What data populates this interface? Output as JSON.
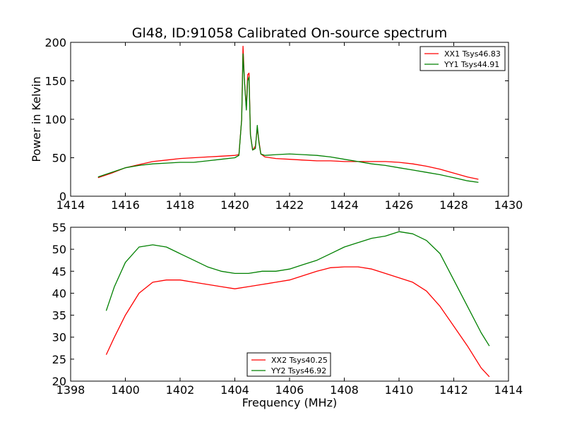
{
  "title": "Gl48, ID:91058 Calibrated On-source spectrum",
  "colors": {
    "red": "#ff0000",
    "green": "#008000"
  },
  "chart_data": [
    {
      "type": "line",
      "ylabel": "Power in Kelvin",
      "xlabel": "",
      "xlim": [
        1414,
        1430
      ],
      "ylim": [
        0,
        200
      ],
      "xticks": [
        1414,
        1416,
        1418,
        1420,
        1422,
        1424,
        1426,
        1428,
        1430
      ],
      "yticks": [
        0,
        50,
        100,
        150,
        200
      ],
      "legend_placement": "top-right",
      "series": [
        {
          "name": "XX1 Tsys46.83",
          "color": "#ff0000",
          "x": [
            1415.0,
            1415.5,
            1416.0,
            1416.5,
            1417.0,
            1417.5,
            1418.0,
            1418.5,
            1419.0,
            1419.5,
            1420.0,
            1420.15,
            1420.25,
            1420.3,
            1420.35,
            1420.42,
            1420.47,
            1420.52,
            1420.57,
            1420.65,
            1420.75,
            1420.82,
            1420.88,
            1420.95,
            1421.1,
            1421.5,
            1422.0,
            1422.5,
            1423.0,
            1423.5,
            1424.0,
            1424.5,
            1425.0,
            1425.5,
            1426.0,
            1426.5,
            1427.0,
            1427.5,
            1428.0,
            1428.5,
            1428.9
          ],
          "y": [
            24,
            30,
            37,
            41,
            45,
            47,
            49,
            50,
            51,
            52,
            53,
            54,
            100,
            195,
            150,
            115,
            158,
            160,
            80,
            60,
            65,
            88,
            72,
            55,
            51,
            49,
            48,
            47,
            46,
            46,
            45,
            45,
            45,
            45,
            44,
            42,
            39,
            35,
            30,
            25,
            22
          ]
        },
        {
          "name": "YY1 Tsys44.91",
          "color": "#008000",
          "x": [
            1415.0,
            1415.5,
            1416.0,
            1416.5,
            1417.0,
            1417.5,
            1418.0,
            1418.5,
            1419.0,
            1419.5,
            1420.0,
            1420.15,
            1420.25,
            1420.3,
            1420.35,
            1420.42,
            1420.47,
            1420.52,
            1420.57,
            1420.65,
            1420.75,
            1420.82,
            1420.88,
            1420.95,
            1421.1,
            1421.5,
            1422.0,
            1422.5,
            1423.0,
            1423.5,
            1424.0,
            1424.5,
            1425.0,
            1425.5,
            1426.0,
            1426.5,
            1427.0,
            1427.5,
            1428.0,
            1428.5,
            1428.9
          ],
          "y": [
            25,
            31,
            37,
            40,
            42,
            43,
            44,
            44,
            46,
            48,
            50,
            53,
            100,
            185,
            150,
            112,
            150,
            155,
            80,
            60,
            62,
            92,
            70,
            55,
            53,
            54,
            55,
            54,
            53,
            51,
            48,
            45,
            42,
            40,
            37,
            34,
            31,
            28,
            24,
            20,
            18
          ]
        }
      ]
    },
    {
      "type": "line",
      "ylabel": "",
      "xlabel": "Frequency (MHz)",
      "xlim": [
        1398,
        1414
      ],
      "ylim": [
        20,
        55
      ],
      "xticks": [
        1398,
        1400,
        1402,
        1404,
        1406,
        1408,
        1410,
        1412,
        1414
      ],
      "yticks": [
        20,
        25,
        30,
        35,
        40,
        45,
        50,
        55
      ],
      "legend_placement": "bottom-center",
      "series": [
        {
          "name": "XX2 Tsys40.25",
          "color": "#ff0000",
          "x": [
            1399.3,
            1399.6,
            1400.0,
            1400.5,
            1401.0,
            1401.5,
            1402.0,
            1402.5,
            1403.0,
            1403.5,
            1404.0,
            1404.5,
            1405.0,
            1405.5,
            1406.0,
            1406.5,
            1407.0,
            1407.5,
            1408.0,
            1408.5,
            1409.0,
            1409.5,
            1410.0,
            1410.5,
            1411.0,
            1411.5,
            1412.0,
            1412.5,
            1413.0,
            1413.3
          ],
          "y": [
            26,
            30,
            35,
            40,
            42.5,
            43,
            43,
            42.5,
            42,
            41.5,
            41,
            41.5,
            42,
            42.5,
            43,
            44,
            45,
            45.8,
            46,
            46,
            45.5,
            44.5,
            43.5,
            42.5,
            40.5,
            37,
            32.5,
            28,
            23,
            21
          ]
        },
        {
          "name": "YY2 Tsys46.92",
          "color": "#008000",
          "x": [
            1399.3,
            1399.6,
            1400.0,
            1400.5,
            1401.0,
            1401.5,
            1402.0,
            1402.5,
            1403.0,
            1403.5,
            1404.0,
            1404.5,
            1405.0,
            1405.5,
            1406.0,
            1406.5,
            1407.0,
            1407.5,
            1408.0,
            1408.5,
            1409.0,
            1409.5,
            1410.0,
            1410.5,
            1411.0,
            1411.5,
            1412.0,
            1412.5,
            1413.0,
            1413.3
          ],
          "y": [
            36,
            41.5,
            47,
            50.5,
            51,
            50.5,
            49,
            47.5,
            46,
            45,
            44.5,
            44.5,
            45,
            45,
            45.5,
            46.5,
            47.5,
            49,
            50.5,
            51.5,
            52.5,
            53,
            54,
            53.5,
            52,
            49,
            43,
            37,
            31,
            28
          ]
        }
      ]
    }
  ]
}
